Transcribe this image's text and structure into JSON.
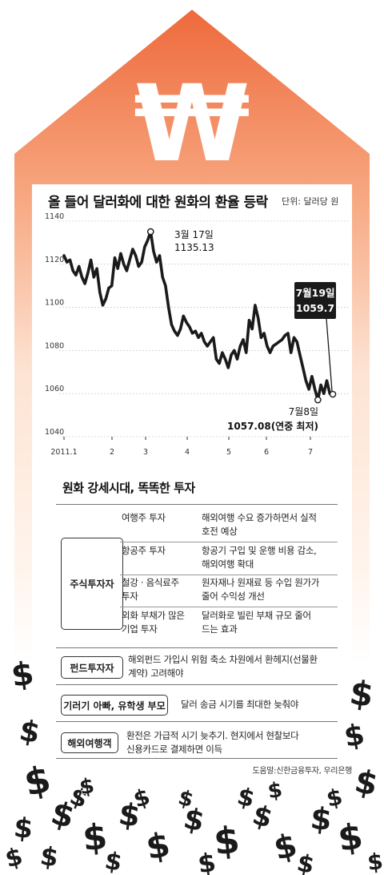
{
  "chart_data": {
    "type": "line",
    "title": "올 들어 달러화에 대한 원화의 환율 등락",
    "unit": "단위: 달러당 원",
    "ylim": [
      1040,
      1140
    ],
    "yticks": [
      "1140",
      "1120",
      "1100",
      "1080",
      "1060",
      "1040"
    ],
    "xticks": [
      "2011.1",
      "2",
      "3",
      "4",
      "5",
      "6",
      "7"
    ],
    "series": [
      {
        "values": [
          1124,
          1121,
          1122,
          1117,
          1115,
          1119,
          1114,
          1111,
          1116,
          1122,
          1114,
          1118,
          1107,
          1101,
          1104,
          1109,
          1110,
          1123,
          1118,
          1125,
          1120,
          1117,
          1122,
          1127,
          1124,
          1119,
          1121,
          1128,
          1131,
          1135.13,
          1126,
          1121,
          1124,
          1114,
          1110,
          1100,
          1092,
          1089,
          1087,
          1090,
          1096,
          1093,
          1091,
          1088,
          1089,
          1086,
          1088,
          1084,
          1082,
          1084,
          1086,
          1076,
          1074,
          1079,
          1076,
          1072,
          1078,
          1080,
          1076,
          1082,
          1085,
          1079,
          1094,
          1090,
          1101,
          1095,
          1086,
          1088,
          1082,
          1079,
          1082,
          1083,
          1084,
          1085,
          1087,
          1088,
          1079,
          1086,
          1084,
          1078,
          1072,
          1066,
          1062,
          1068,
          1062,
          1057.08,
          1064,
          1060,
          1066,
          1060,
          1059.7
        ]
      }
    ],
    "annotations": [
      {
        "date": "3월 17일",
        "value": "1135.13"
      },
      {
        "date": "7월8일",
        "value": "1057.08(연중 최저)"
      },
      {
        "date": "7월19일",
        "value": "1059.7"
      }
    ]
  },
  "tips": {
    "title": "원화 강세시대, 똑똑한 투자",
    "groups": [
      {
        "category": "주식투자자",
        "rows": [
          {
            "target": [
              "여행주 투자"
            ],
            "effect": [
              "해외여행 수요 증가하면서 실적",
              "호전 예상"
            ]
          },
          {
            "target": [
              "항공주 투자"
            ],
            "effect": [
              "항공기 구입 및 운행 비용 감소,",
              "해외여행 확대"
            ]
          },
          {
            "target": [
              "철강 · 음식료주",
              "투자"
            ],
            "effect": [
              "원자재나 원재료 등 수입 원가가",
              "줄어 수익성 개선"
            ]
          },
          {
            "target": [
              "외화 부채가 많은",
              "기업 투자"
            ],
            "effect": [
              "달러화로 빌린 부채 규모 줄어",
              "드는 효과"
            ]
          }
        ]
      },
      {
        "category": "펀드투자자",
        "rows": [
          {
            "effect": [
              "해외펀드 가입시 위험 축소 차원에서 환헤지(선물환",
              "계약) 고려해야"
            ]
          }
        ]
      },
      {
        "category": "기러기 아빠, 유학생 부모",
        "rows": [
          {
            "effect": [
              "달러 송금 시기를 최대한 늦춰야"
            ]
          }
        ]
      },
      {
        "category": "해외여행객",
        "rows": [
          {
            "effect": [
              "환전은 가급적 시기 늦추기. 현지에서 현찰보다",
              "신용카드로 결제하면 이득"
            ]
          }
        ]
      }
    ]
  },
  "source": "도움말:신한금융투자, 우리은행"
}
